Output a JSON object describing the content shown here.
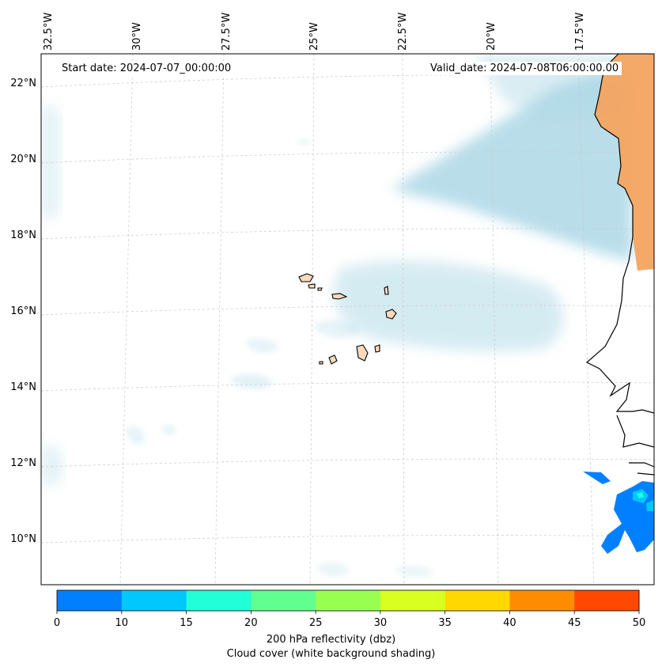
{
  "map": {
    "start_date": "Start date: 2024-07-07_00:00:00",
    "valid_date": "Valid_date: 2024-07-08T06:00:00.00",
    "lon_labels": [
      "32.5°W",
      "30°W",
      "27.5°W",
      "25°W",
      "22.5°W",
      "20°W",
      "17.5°W"
    ],
    "lat_labels": [
      "22°N",
      "20°N",
      "18°N",
      "16°N",
      "14°N",
      "12°N",
      "10°N"
    ],
    "land_color": "#f4a460",
    "island_color": "#fcd9bc",
    "cloud_color": "#add8e6"
  },
  "colorbar": {
    "ticks": [
      "0",
      "10",
      "15",
      "20",
      "25",
      "30",
      "35",
      "40",
      "45",
      "50"
    ],
    "colors": [
      "#0080ff",
      "#00c8ff",
      "#20ffd8",
      "#60ff90",
      "#98ff50",
      "#d8ff20",
      "#ffd800",
      "#ff8c00",
      "#ff4800"
    ],
    "label_line1": "200 hPa reflectivity (dbz)",
    "label_line2": "Cloud cover (white background shading)"
  }
}
